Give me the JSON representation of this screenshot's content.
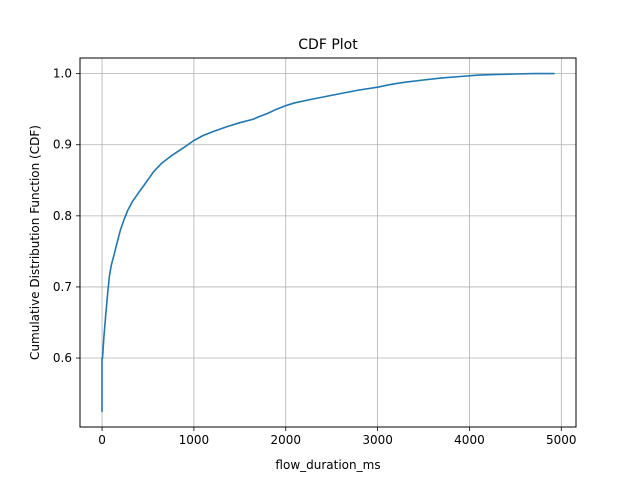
{
  "chart_data": {
    "type": "line",
    "title": "CDF Plot",
    "xlabel": "flow_duration_ms",
    "ylabel": "Cumulative Distribution Function (CDF)",
    "xlim": [
      -240,
      5160
    ],
    "ylim": [
      0.503,
      1.022
    ],
    "grid": true,
    "x_ticks": [
      0,
      1000,
      2000,
      3000,
      4000,
      5000
    ],
    "y_ticks": [
      0.6,
      0.7,
      0.8,
      0.9,
      1.0
    ],
    "series": [
      {
        "color": "#1f77b4",
        "x": [
          0,
          0,
          0,
          0,
          0,
          5,
          10,
          20,
          40,
          60,
          80,
          100,
          130,
          160,
          200,
          240,
          280,
          330,
          400,
          480,
          560,
          650,
          760,
          900,
          1000,
          1100,
          1200,
          1350,
          1500,
          1650,
          1700,
          1800,
          1900,
          2000,
          2100,
          2250,
          2400,
          2600,
          2800,
          3000,
          3150,
          3300,
          3500,
          3700,
          3900,
          4100,
          4300,
          4500,
          4700,
          4920
        ],
        "y": [
          0.525,
          0.555,
          0.58,
          0.595,
          0.6,
          0.6,
          0.61,
          0.63,
          0.66,
          0.69,
          0.715,
          0.73,
          0.745,
          0.76,
          0.78,
          0.795,
          0.808,
          0.82,
          0.833,
          0.847,
          0.862,
          0.874,
          0.885,
          0.897,
          0.906,
          0.913,
          0.918,
          0.925,
          0.931,
          0.936,
          0.939,
          0.944,
          0.95,
          0.955,
          0.959,
          0.963,
          0.967,
          0.972,
          0.977,
          0.981,
          0.985,
          0.988,
          0.991,
          0.994,
          0.996,
          0.998,
          0.999,
          0.9995,
          1.0,
          1.0
        ]
      }
    ]
  }
}
